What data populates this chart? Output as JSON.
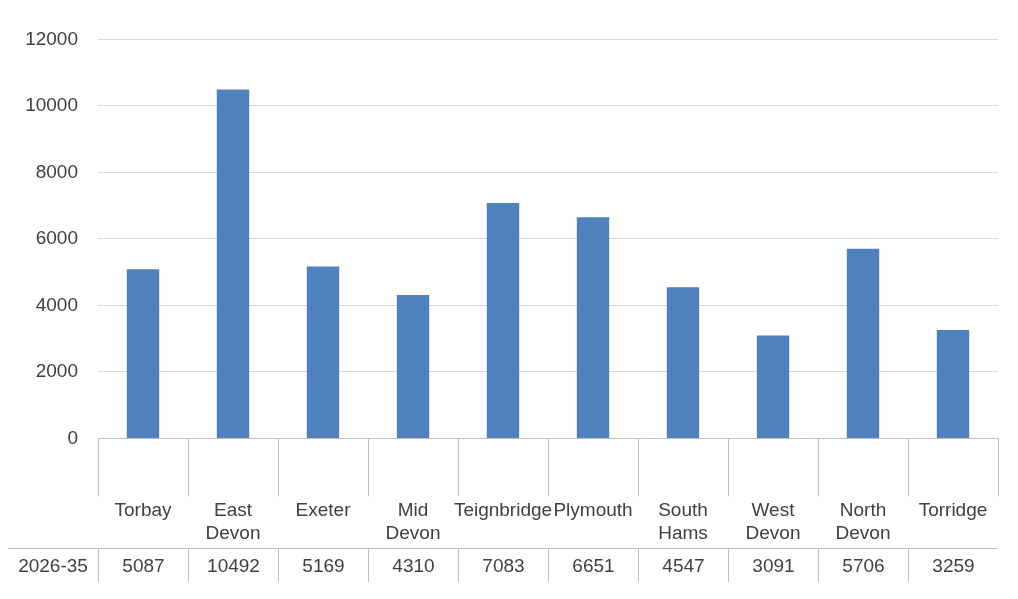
{
  "chart_data": {
    "type": "bar",
    "categories": [
      "Torbay",
      "East Devon",
      "Exeter",
      "Mid Devon",
      "Teignbridge",
      "Plymouth",
      "South Hams",
      "West Devon",
      "North Devon",
      "Torridge"
    ],
    "series": [
      {
        "name": "2026-35",
        "color": "#4f81bd",
        "values": [
          5087,
          10492,
          5169,
          4310,
          7083,
          6651,
          4547,
          3091,
          5706,
          3259
        ]
      }
    ],
    "ylim": [
      0,
      12000
    ],
    "yticks": [
      0,
      2000,
      4000,
      6000,
      8000,
      10000,
      12000
    ],
    "grid": "y",
    "legend": false,
    "data_labels": true
  }
}
